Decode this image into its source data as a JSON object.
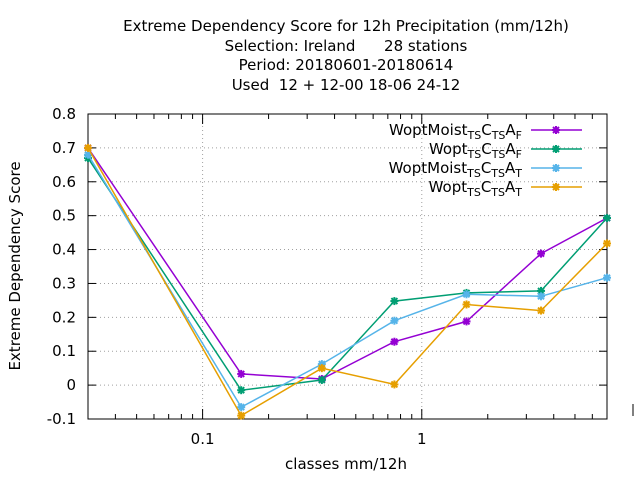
{
  "chart_data": {
    "type": "line",
    "title_lines": [
      "Extreme Dependency Score  for 12h Precipitation (mm/12h)",
      "Selection: Ireland      28 stations",
      "Period: 20180601-20180614",
      "Used  12 + 12-00 18-06 24-12"
    ],
    "xlabel": "classes mm/12h",
    "ylabel": "Extreme Dependency Score",
    "x_scale": "log",
    "xlim": [
      0.03,
      7
    ],
    "ylim": [
      -0.1,
      0.8
    ],
    "x_ticks": [
      {
        "value": 0.1,
        "label": "0.1"
      },
      {
        "value": 1,
        "label": "1"
      }
    ],
    "y_ticks": [
      {
        "value": -0.1,
        "label": "-0.1"
      },
      {
        "value": 0,
        "label": "0"
      },
      {
        "value": 0.1,
        "label": "0.1"
      },
      {
        "value": 0.2,
        "label": "0.2"
      },
      {
        "value": 0.3,
        "label": "0.3"
      },
      {
        "value": 0.4,
        "label": "0.4"
      },
      {
        "value": 0.5,
        "label": "0.5"
      },
      {
        "value": 0.6,
        "label": "0.6"
      },
      {
        "value": 0.7,
        "label": "0.7"
      },
      {
        "value": 0.8,
        "label": "0.8"
      }
    ],
    "grid": true,
    "legend_position": "top-right",
    "x": [
      0.03,
      0.15,
      0.35,
      0.75,
      1.6,
      3.5,
      7
    ],
    "series": [
      {
        "name": "WoptMoist",
        "sub1": "TS",
        "mid": "C",
        "sub2": "TS",
        "tail": "A",
        "sub3": "F",
        "color": "#9400d3",
        "values": [
          0.7,
          0.033,
          0.018,
          0.128,
          0.188,
          0.388,
          0.493
        ]
      },
      {
        "name": "Wopt",
        "sub1": "TS",
        "mid": "C",
        "sub2": "TS",
        "tail": "A",
        "sub3": "F",
        "color": "#009e73",
        "values": [
          0.67,
          -0.015,
          0.015,
          0.248,
          0.272,
          0.278,
          0.493
        ]
      },
      {
        "name": "WoptMoist",
        "sub1": "TS",
        "mid": "C",
        "sub2": "TS",
        "tail": "A",
        "sub3": "T",
        "color": "#56b4e9",
        "values": [
          0.68,
          -0.065,
          0.062,
          0.19,
          0.268,
          0.262,
          0.317
        ]
      },
      {
        "name": "Wopt",
        "sub1": "TS",
        "mid": "C",
        "sub2": "TS",
        "tail": "A",
        "sub3": "T",
        "color": "#e69f00",
        "values": [
          0.7,
          -0.09,
          0.05,
          0.002,
          0.238,
          0.22,
          0.418
        ]
      }
    ]
  }
}
